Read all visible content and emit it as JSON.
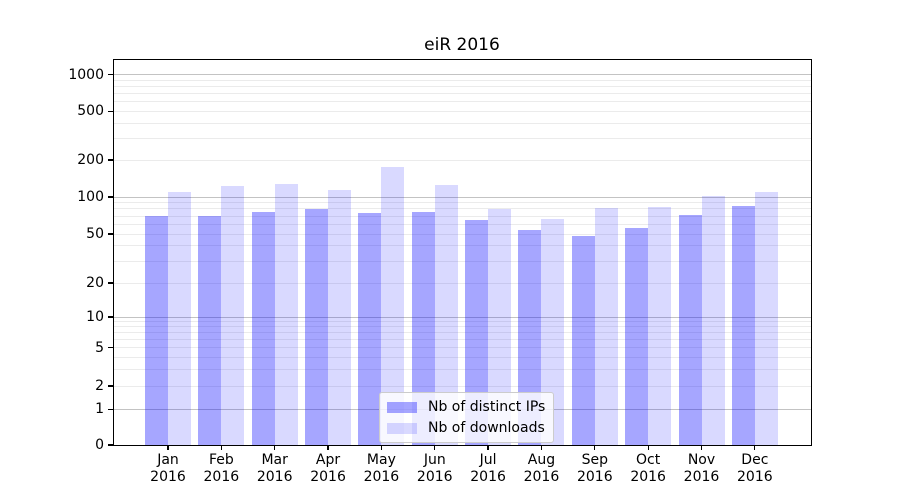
{
  "chart_data": {
    "type": "bar",
    "title": "eiR 2016",
    "categories": [
      "Jan",
      "Feb",
      "Mar",
      "Apr",
      "May",
      "Jun",
      "Jul",
      "Aug",
      "Sep",
      "Oct",
      "Nov",
      "Dec"
    ],
    "category_year": "2016",
    "series": [
      {
        "name": "Nb of distinct IPs",
        "color": "#0000ff",
        "alpha": 0.35,
        "rendered_color": "#a6a6ff",
        "values": [
          70,
          70,
          75,
          80,
          74,
          76,
          65,
          54,
          48,
          56,
          71,
          84
        ]
      },
      {
        "name": "Nb of downloads",
        "color": "#0000ff",
        "alpha": 0.15,
        "rendered_color": "#d9d9ff",
        "values": [
          110,
          122,
          128,
          113,
          175,
          126,
          80,
          66,
          81,
          83,
          101,
          110
        ]
      }
    ],
    "xlabel": "",
    "ylabel": "",
    "yscale": "symlog",
    "yticks": [
      0,
      1,
      2,
      5,
      10,
      20,
      50,
      100,
      200,
      500,
      1000
    ],
    "ylim": [
      0,
      1300
    ],
    "grid": "horizontal, major (decades) + minor (log subdivisions)",
    "legend_position": "lower center",
    "major_grid_color": "#c3c3c3",
    "minor_grid_color": "#ebebeb",
    "axis_color": "#000000",
    "background_color": "#ffffff"
  }
}
